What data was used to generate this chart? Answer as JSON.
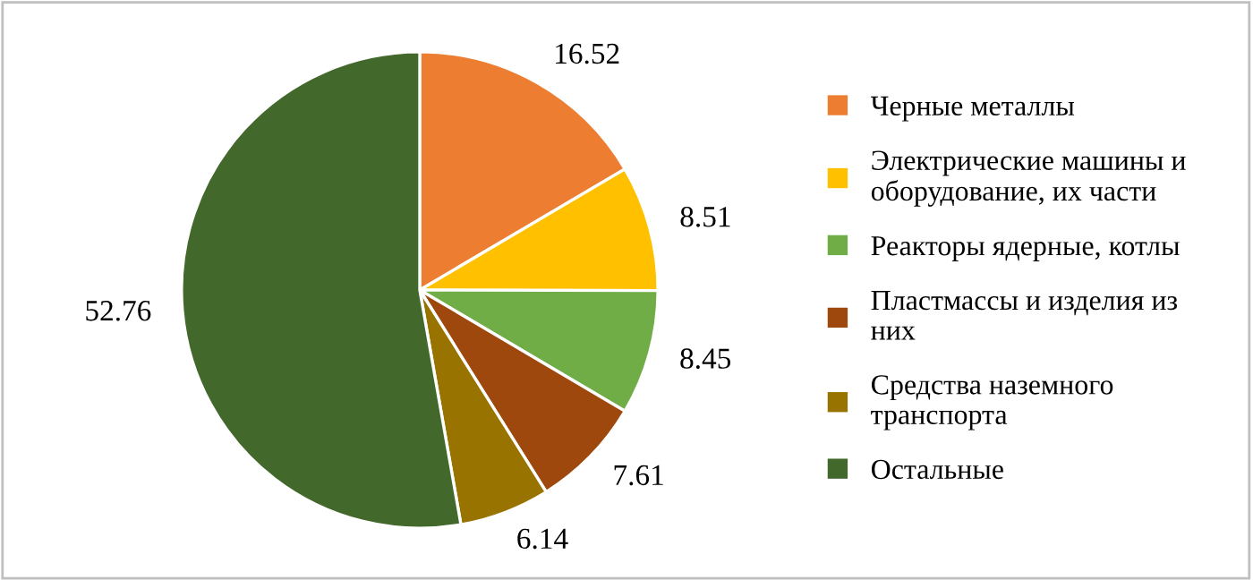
{
  "chart_data": {
    "type": "pie",
    "categories": [
      "Черные металлы",
      "Электрические машины и оборудование, их части",
      "Реакторы ядерные, котлы",
      "Пластмассы и изделия из них",
      "Средства наземного транспорта",
      "Остальные"
    ],
    "values": [
      16.52,
      8.51,
      8.45,
      7.61,
      6.14,
      52.76
    ],
    "colors": [
      "#ed7d31",
      "#ffc000",
      "#70ad47",
      "#9e480e",
      "#997300",
      "#43682b"
    ],
    "data_labels": true,
    "legend": "right"
  }
}
